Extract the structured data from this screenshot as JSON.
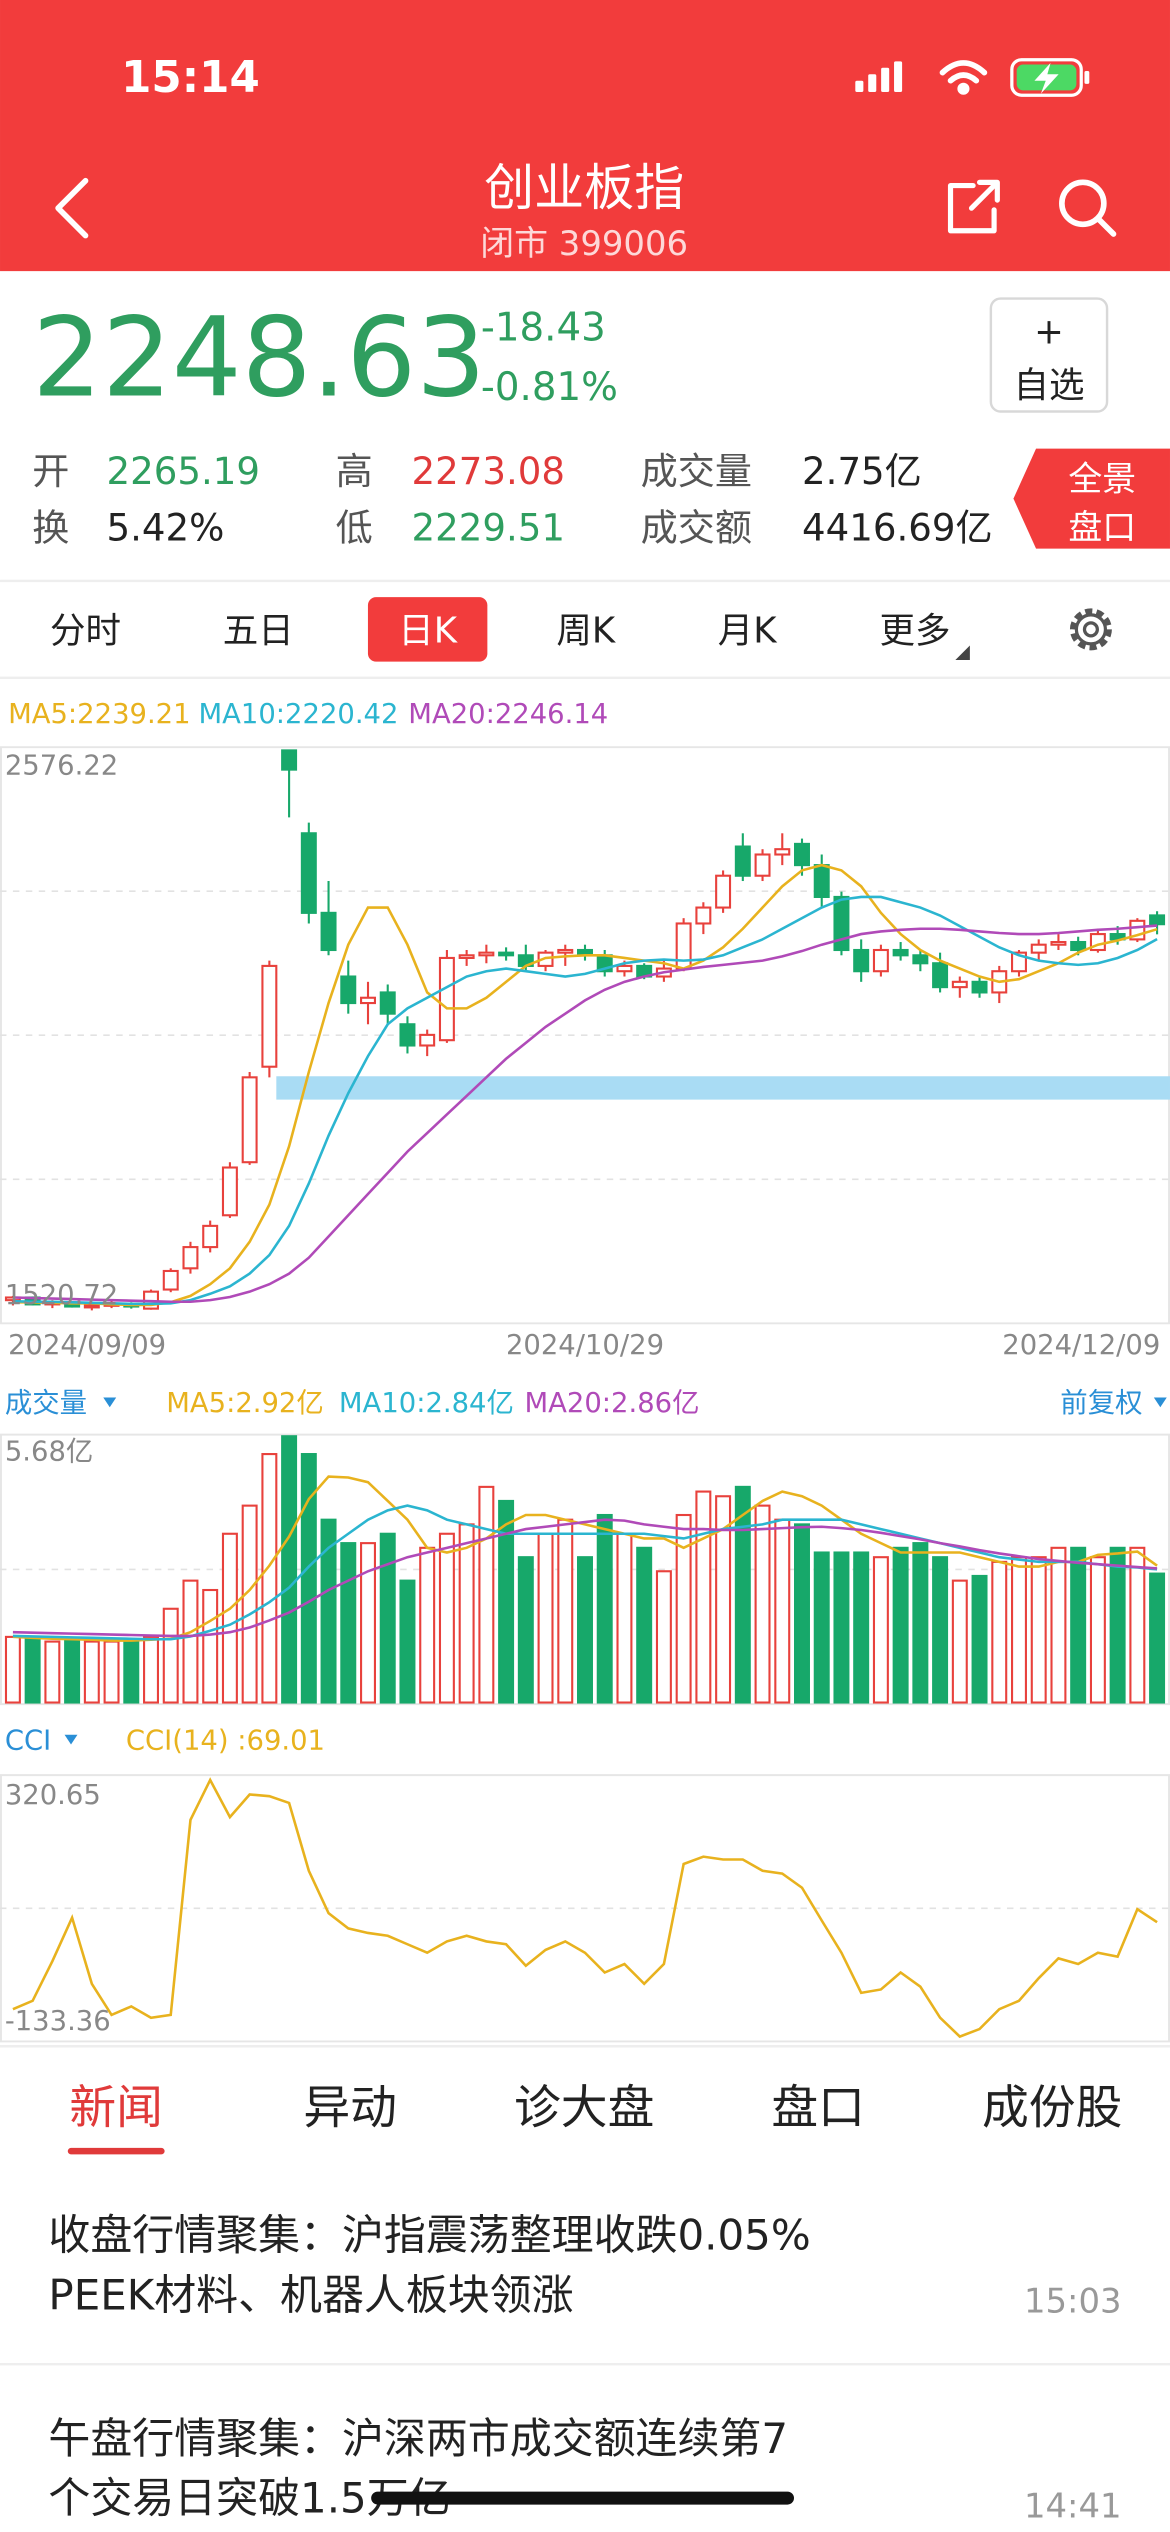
{
  "status_bar": {
    "time": "15:14"
  },
  "header": {
    "title": "创业板指",
    "subtitle": "闭市 399006"
  },
  "quote": {
    "price": "2248.63",
    "change": "-18.43",
    "change_pct": "-0.81%",
    "watch_plus": "+",
    "watch_label": "自选"
  },
  "stats": [
    {
      "label": "开",
      "value": "2265.19"
    },
    {
      "label": "换",
      "value": "5.42%"
    },
    {
      "label": "高",
      "value": "2273.08"
    },
    {
      "label": "低",
      "value": "2229.51"
    },
    {
      "label": "成交量",
      "value": "2.75亿"
    },
    {
      "label": "成交额",
      "value": "4416.69亿"
    }
  ],
  "panorama_button": [
    "全景",
    "盘口"
  ],
  "period_tabs": {
    "items": [
      "分时",
      "五日",
      "日K",
      "周K",
      "月K",
      "更多"
    ],
    "active": 2
  },
  "chart_data": [
    {
      "type": "candlestick",
      "categories": [
        "2024/09/09",
        null,
        null,
        null,
        null,
        null,
        null,
        null,
        null,
        null,
        null,
        null,
        null,
        null,
        null,
        null,
        null,
        null,
        null,
        null,
        null,
        null,
        null,
        null,
        null,
        null,
        null,
        null,
        null,
        "2024/10/29",
        null,
        null,
        null,
        null,
        null,
        null,
        null,
        null,
        null,
        null,
        null,
        null,
        null,
        null,
        null,
        null,
        null,
        null,
        null,
        null,
        null,
        null,
        null,
        null,
        null,
        null,
        null,
        null,
        "2024/12/09"
      ],
      "open": [
        1540,
        1545,
        1532,
        1536,
        1528,
        1530,
        1533,
        1524,
        1560,
        1600,
        1640,
        1700,
        1800,
        1980,
        2576.22,
        2420,
        2270,
        2150,
        2100,
        2120,
        2060,
        2020,
        2030,
        2185,
        2190,
        2195,
        2190,
        2170,
        2195,
        2200,
        2190,
        2160,
        2170,
        2150,
        2165,
        2250,
        2280,
        2395,
        2340,
        2380,
        2400,
        2360,
        2300,
        2200,
        2160,
        2200,
        2190,
        2175,
        2130,
        2140,
        2120,
        2160,
        2195,
        2210,
        2215,
        2200,
        2230,
        2220,
        2265.19
      ],
      "high": [
        1548,
        1547,
        1540,
        1538,
        1535,
        1540,
        1536,
        1560,
        1600,
        1650,
        1690,
        1800,
        1970,
        2180,
        2576.22,
        2440,
        2330,
        2180,
        2140,
        2135,
        2075,
        2050,
        2200,
        2200,
        2210,
        2205,
        2210,
        2200,
        2210,
        2210,
        2200,
        2180,
        2175,
        2180,
        2260,
        2290,
        2350,
        2420,
        2390,
        2420,
        2410,
        2380,
        2310,
        2220,
        2210,
        2215,
        2200,
        2195,
        2150,
        2150,
        2170,
        2200,
        2220,
        2230,
        2225,
        2240,
        2245,
        2260,
        2273.08
      ],
      "low": [
        1530,
        1530,
        1525,
        1526,
        1520.72,
        1525,
        1524,
        1522,
        1555,
        1590,
        1630,
        1695,
        1795,
        1960,
        2450,
        2250,
        2190,
        2080,
        2060,
        2060,
        2005,
        2000,
        2025,
        2170,
        2175,
        2180,
        2160,
        2160,
        2170,
        2180,
        2150,
        2150,
        2145,
        2140,
        2160,
        2230,
        2270,
        2330,
        2330,
        2360,
        2340,
        2280,
        2190,
        2140,
        2150,
        2180,
        2160,
        2120,
        2110,
        2110,
        2100,
        2150,
        2180,
        2200,
        2190,
        2195,
        2210,
        2215,
        2229.51
      ],
      "close": [
        1545,
        1532,
        1536,
        1528,
        1530,
        1533,
        1528,
        1556,
        1595,
        1640,
        1680,
        1790,
        1960,
        2170,
        2540,
        2270,
        2200,
        2100,
        2110,
        2080,
        2020,
        2040,
        2185,
        2190,
        2195,
        2190,
        2170,
        2195,
        2200,
        2190,
        2160,
        2170,
        2150,
        2165,
        2250,
        2280,
        2340,
        2340,
        2380,
        2390,
        2360,
        2300,
        2200,
        2160,
        2200,
        2190,
        2175,
        2130,
        2140,
        2120,
        2160,
        2195,
        2210,
        2215,
        2200,
        2230,
        2220,
        2255,
        2248.63
      ],
      "up_color": "#e8413c",
      "down_color": "#17a86a",
      "series": [
        {
          "name": "MA5:2239.21",
          "color": "#e8b21e",
          "values": [
            1536,
            1536,
            1535,
            1534,
            1534,
            1532,
            1531,
            1531,
            1536,
            1548,
            1570,
            1600,
            1650,
            1720,
            1830,
            1970,
            2100,
            2210,
            2280,
            2280,
            2210,
            2120,
            2090,
            2090,
            2110,
            2140,
            2170,
            2185,
            2188,
            2190,
            2190,
            2185,
            2180,
            2175,
            2165,
            2180,
            2205,
            2240,
            2280,
            2320,
            2350,
            2360,
            2350,
            2320,
            2270,
            2230,
            2200,
            2180,
            2165,
            2150,
            2140,
            2145,
            2160,
            2175,
            2195,
            2210,
            2218,
            2228,
            2239.21
          ]
        },
        {
          "name": "MA10:2220.42",
          "color": "#2bb5d0",
          "values": [
            1538,
            1537,
            1537,
            1536,
            1535,
            1534,
            1533,
            1533,
            1534,
            1540,
            1552,
            1566,
            1590,
            1625,
            1680,
            1760,
            1850,
            1930,
            2000,
            2060,
            2090,
            2110,
            2130,
            2150,
            2160,
            2165,
            2160,
            2155,
            2150,
            2155,
            2165,
            2175,
            2180,
            2182,
            2180,
            2182,
            2190,
            2205,
            2220,
            2240,
            2260,
            2280,
            2295,
            2300,
            2300,
            2290,
            2280,
            2265,
            2245,
            2225,
            2205,
            2190,
            2180,
            2175,
            2172,
            2175,
            2185,
            2200,
            2220.42
          ]
        },
        {
          "name": "MA20:2246.14",
          "color": "#b04ab8",
          "values": [
            1545,
            1544,
            1543,
            1542,
            1541,
            1540,
            1539,
            1538,
            1537,
            1537,
            1540,
            1546,
            1556,
            1570,
            1590,
            1620,
            1660,
            1700,
            1740,
            1780,
            1820,
            1855,
            1890,
            1925,
            1960,
            1995,
            2025,
            2055,
            2080,
            2105,
            2125,
            2140,
            2150,
            2158,
            2163,
            2168,
            2172,
            2176,
            2180,
            2188,
            2198,
            2210,
            2220,
            2230,
            2235,
            2238,
            2240,
            2240,
            2238,
            2235,
            2232,
            2230,
            2230,
            2232,
            2235,
            2238,
            2240,
            2243,
            2246.14
          ]
        }
      ],
      "highlight_band": [
        1918,
        1962
      ],
      "band_color": "#a9dcf4",
      "ylim": [
        1520.72,
        2576.22
      ],
      "yticks": [
        2576.22,
        1520.72
      ]
    },
    {
      "type": "bar",
      "label": "成交量",
      "adjust_label": "前复权",
      "values": [
        1.4,
        1.35,
        1.3,
        1.35,
        1.3,
        1.3,
        1.35,
        1.4,
        2.0,
        2.6,
        2.4,
        3.6,
        4.2,
        5.3,
        5.68,
        5.3,
        3.9,
        3.4,
        3.4,
        3.6,
        2.6,
        3.3,
        3.6,
        3.8,
        4.6,
        4.3,
        3.1,
        3.6,
        3.9,
        3.1,
        4.0,
        3.6,
        3.3,
        2.8,
        4.0,
        4.5,
        4.4,
        4.6,
        4.2,
        3.9,
        3.8,
        3.2,
        3.2,
        3.2,
        3.1,
        3.3,
        3.4,
        3.1,
        2.6,
        2.7,
        3.0,
        3.1,
        3.1,
        3.3,
        3.3,
        3.1,
        3.3,
        3.3,
        2.75
      ],
      "series": [
        {
          "name": "MA5:2.92亿",
          "color": "#e8b21e",
          "values": [
            1.4,
            1.38,
            1.36,
            1.35,
            1.34,
            1.32,
            1.32,
            1.34,
            1.36,
            1.5,
            1.74,
            2.0,
            2.4,
            2.92,
            3.54,
            4.34,
            4.82,
            4.8,
            4.7,
            4.3,
            3.9,
            3.3,
            3.2,
            3.3,
            3.5,
            3.8,
            4.0,
            4.0,
            3.9,
            3.8,
            3.7,
            3.6,
            3.5,
            3.5,
            3.3,
            3.5,
            3.7,
            4.0,
            4.3,
            4.5,
            4.4,
            4.2,
            3.9,
            3.6,
            3.4,
            3.2,
            3.2,
            3.2,
            3.2,
            3.1,
            3.0,
            2.9,
            2.9,
            3.0,
            3.0,
            3.15,
            3.18,
            3.22,
            2.92
          ]
        },
        {
          "name": "MA10:2.84亿",
          "color": "#2bb5d0",
          "values": [
            1.42,
            1.41,
            1.4,
            1.39,
            1.38,
            1.37,
            1.36,
            1.35,
            1.35,
            1.41,
            1.53,
            1.66,
            1.88,
            2.14,
            2.45,
            2.9,
            3.3,
            3.6,
            3.9,
            4.1,
            4.2,
            4.1,
            3.9,
            3.8,
            3.7,
            3.6,
            3.6,
            3.6,
            3.6,
            3.6,
            3.6,
            3.6,
            3.6,
            3.55,
            3.5,
            3.6,
            3.7,
            3.75,
            3.8,
            3.9,
            3.9,
            3.9,
            3.9,
            3.8,
            3.7,
            3.6,
            3.5,
            3.4,
            3.3,
            3.2,
            3.1,
            3.05,
            3.0,
            3.0,
            3.0,
            2.95,
            2.9,
            2.88,
            2.84
          ]
        },
        {
          "name": "MA20:2.86亿",
          "color": "#b04ab8",
          "values": [
            1.5,
            1.49,
            1.48,
            1.47,
            1.46,
            1.45,
            1.44,
            1.43,
            1.42,
            1.42,
            1.45,
            1.5,
            1.6,
            1.75,
            1.92,
            2.15,
            2.4,
            2.6,
            2.8,
            2.95,
            3.1,
            3.2,
            3.3,
            3.4,
            3.5,
            3.6,
            3.7,
            3.75,
            3.8,
            3.85,
            3.9,
            3.88,
            3.8,
            3.75,
            3.7,
            3.7,
            3.68,
            3.68,
            3.7,
            3.72,
            3.74,
            3.75,
            3.72,
            3.68,
            3.62,
            3.55,
            3.48,
            3.4,
            3.33,
            3.25,
            3.18,
            3.12,
            3.06,
            3.02,
            2.98,
            2.95,
            2.92,
            2.89,
            2.86
          ]
        }
      ],
      "ylim": [
        0,
        5.68
      ],
      "yticks": [
        {
          "value": 5.68,
          "label": "5.68亿"
        }
      ]
    },
    {
      "type": "line",
      "label": "CCI",
      "series": [
        {
          "name": "CCI(14) :69.01",
          "color": "#e8b21e",
          "values": [
            -85,
            -70,
            0,
            77,
            -40,
            -95,
            -80,
            -100,
            -95,
            250,
            320.65,
            255,
            295,
            292,
            280,
            160,
            85,
            58,
            50,
            45,
            30,
            15,
            35,
            45,
            35,
            30,
            -8,
            20,
            35,
            15,
            -20,
            -5,
            -40,
            -5,
            172,
            185,
            180,
            180,
            160,
            155,
            130,
            72,
            15,
            -56,
            -50,
            -20,
            -45,
            -100,
            -133.36,
            -120,
            -85,
            -70,
            -30,
            5,
            -5,
            15,
            8,
            92,
            69.01
          ]
        }
      ],
      "ylim": [
        -133.36,
        320.65
      ],
      "yticks": [
        320.65,
        -133.36
      ]
    }
  ],
  "news_tabs": {
    "items": [
      "新闻",
      "异动",
      "诊大盘",
      "盘口",
      "成份股"
    ],
    "active": 0
  },
  "news": [
    {
      "title_lines": [
        "收盘行情聚集：沪指震荡整理收跌0.05%",
        "PEEK材料、机器人板块领涨"
      ],
      "time": "15:03"
    },
    {
      "title_lines": [
        "午盘行情聚集：沪深两市成交额连续第7",
        "个交易日突破1.5万亿"
      ],
      "time": "14:41"
    }
  ]
}
